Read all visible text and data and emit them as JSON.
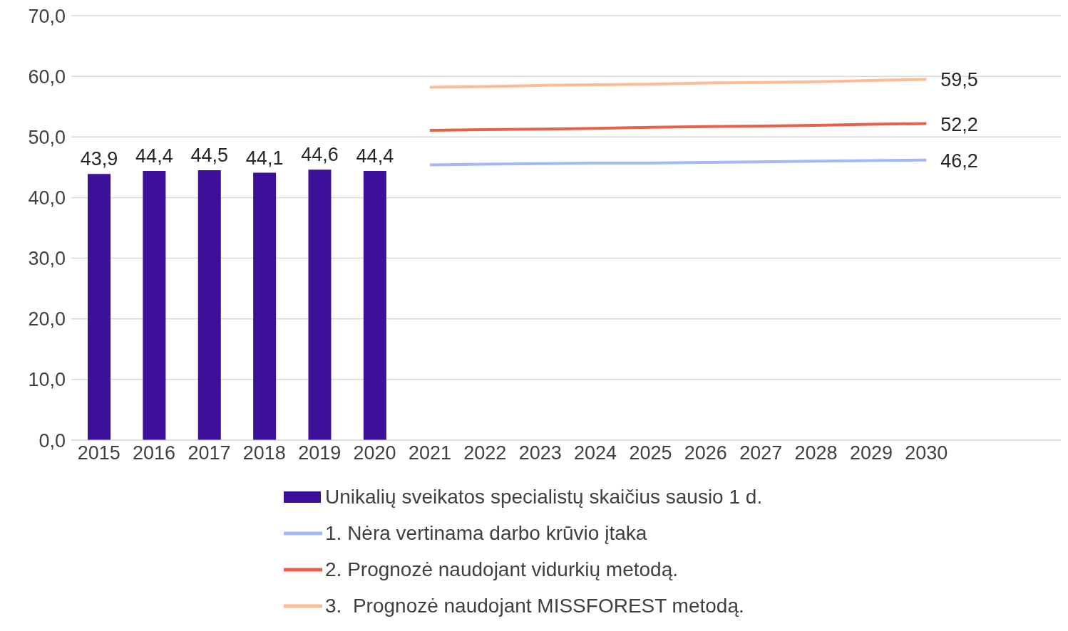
{
  "chart_data": {
    "type": "bar",
    "categories": [
      "2015",
      "2016",
      "2017",
      "2018",
      "2019",
      "2020",
      "2021",
      "2022",
      "2023",
      "2024",
      "2025",
      "2026",
      "2027",
      "2028",
      "2029",
      "2030"
    ],
    "series": [
      {
        "name": "Unikalių sveikatos specialistų skaičius sausio 1 d.",
        "color": "#3d1099",
        "values": [
          43.9,
          44.4,
          44.5,
          44.1,
          44.6,
          44.4,
          null,
          null,
          null,
          null,
          null,
          null,
          null,
          null,
          null,
          null
        ],
        "value_labels": [
          "43,9",
          "44,4",
          "44,5",
          "44,1",
          "44,6",
          "44,4",
          null,
          null,
          null,
          null,
          null,
          null,
          null,
          null,
          null,
          null
        ]
      },
      {
        "type": "line",
        "name": "1. Nėra vertinama darbo krūvio įtaka",
        "color": "#a4b8f5",
        "values": [
          null,
          null,
          null,
          null,
          null,
          null,
          45.4,
          45.5,
          45.6,
          45.7,
          45.7,
          45.8,
          45.9,
          46.0,
          46.1,
          46.2
        ],
        "value_labels": [
          null,
          null,
          null,
          null,
          null,
          null,
          null,
          null,
          null,
          null,
          null,
          null,
          null,
          null,
          null,
          "46,2"
        ]
      },
      {
        "type": "line",
        "name": "2. Prognozė naudojant vidurkių metodą.",
        "color": "#e8604a",
        "values": [
          null,
          null,
          null,
          null,
          null,
          null,
          51.1,
          51.2,
          51.3,
          51.4,
          51.6,
          51.7,
          51.8,
          51.9,
          52.1,
          52.2
        ],
        "value_labels": [
          null,
          null,
          null,
          null,
          null,
          null,
          null,
          null,
          null,
          null,
          null,
          null,
          null,
          null,
          null,
          "52,2"
        ]
      },
      {
        "type": "line",
        "name": "3.  Prognozė naudojant MISSFOREST metodą.",
        "color": "#fdbb94",
        "values": [
          null,
          null,
          null,
          null,
          null,
          null,
          58.2,
          58.3,
          58.5,
          58.6,
          58.7,
          58.9,
          59.0,
          59.1,
          59.3,
          59.5
        ],
        "value_labels": [
          null,
          null,
          null,
          null,
          null,
          null,
          null,
          null,
          null,
          null,
          null,
          null,
          null,
          null,
          null,
          "59,5"
        ]
      }
    ],
    "ylim": [
      0,
      70
    ],
    "yticks": [
      {
        "value": 0,
        "label": "0,0"
      },
      {
        "value": 10,
        "label": "10,0"
      },
      {
        "value": 20,
        "label": "20,0"
      },
      {
        "value": 30,
        "label": "30,0"
      },
      {
        "value": 40,
        "label": "40,0"
      },
      {
        "value": 50,
        "label": "50,0"
      },
      {
        "value": 60,
        "label": "60,0"
      },
      {
        "value": 70,
        "label": "70,0"
      }
    ],
    "grid": "y",
    "legend": "bottom",
    "marker": "none",
    "line_style": "solid"
  }
}
